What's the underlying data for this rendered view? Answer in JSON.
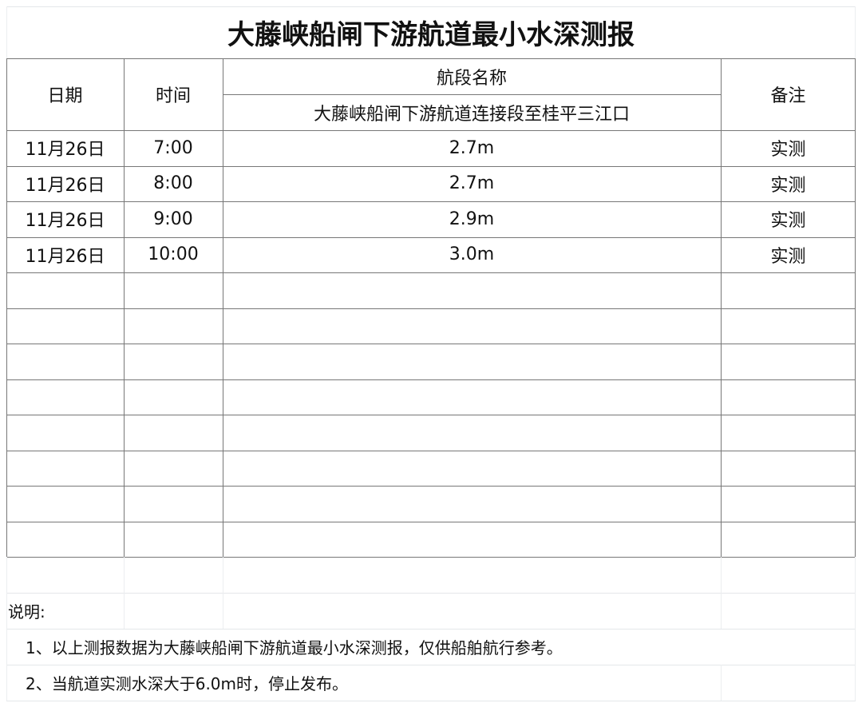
{
  "title": "大藤峡船闸下游航道最小水深测报",
  "headers": {
    "date": "日期",
    "time": "时间",
    "section_label": "航段名称",
    "section_name": "大藤峡船闸下游航道连接段至桂平三江口",
    "remark": "备注"
  },
  "rows": [
    {
      "date": "11月26日",
      "time": "7:00",
      "depth": "2.7m",
      "remark": "实测"
    },
    {
      "date": "11月26日",
      "time": "8:00",
      "depth": "2.7m",
      "remark": "实测"
    },
    {
      "date": "11月26日",
      "time": "9:00",
      "depth": "2.9m",
      "remark": "实测"
    },
    {
      "date": "11月26日",
      "time": "10:00",
      "depth": "3.0m",
      "remark": "实测"
    },
    {},
    {},
    {},
    {},
    {},
    {},
    {},
    {}
  ],
  "notes": {
    "heading": "说明:",
    "items": [
      "1、以上测报数据为大藤峡船闸下游航道最小水深测报，仅供船舶航行参考。",
      "2、当航道实测水深大于6.0m时，停止发布。"
    ]
  }
}
